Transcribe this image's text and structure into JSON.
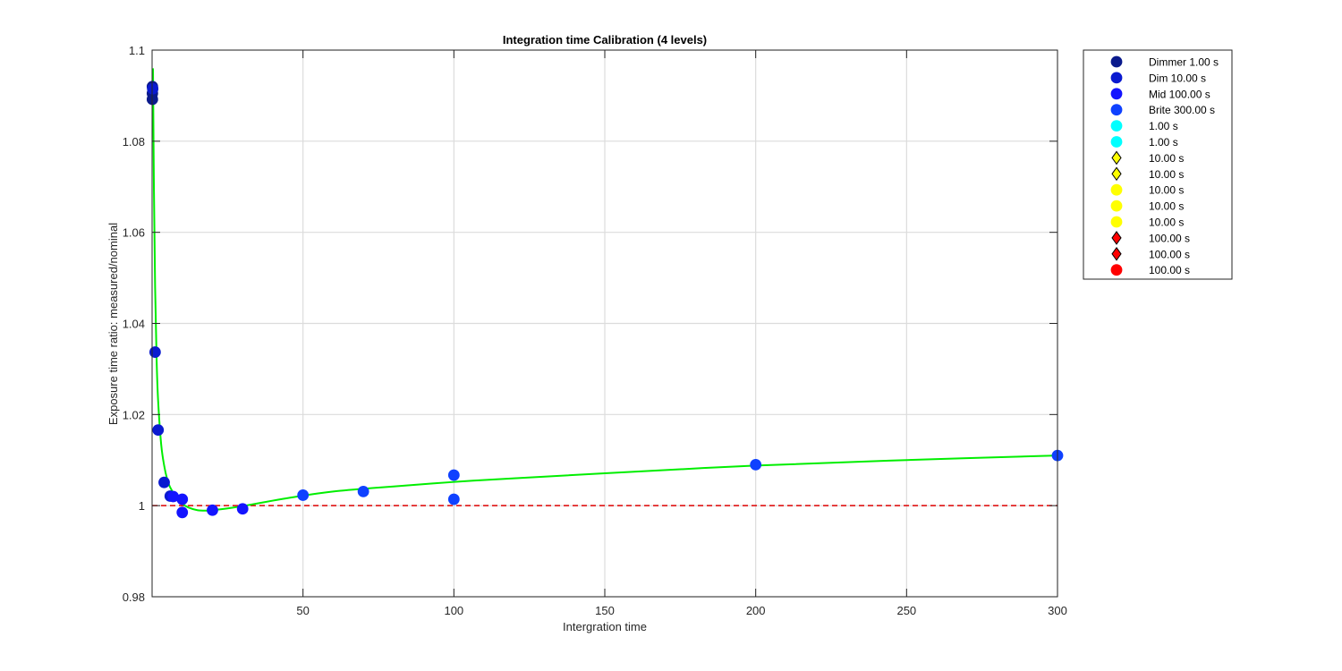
{
  "chart_data": {
    "type": "scatter",
    "title": "Integration time Calibration (4 levels)",
    "xlabel": "Intergration time",
    "ylabel": "Exposure time ratio: measured/nominal",
    "xlim": [
      0,
      300
    ],
    "ylim": [
      0.98,
      1.1
    ],
    "x_ticks": [
      50,
      100,
      150,
      200,
      250,
      300
    ],
    "x_tick_labels": [
      "50",
      "100",
      "150",
      "200",
      "250",
      "300"
    ],
    "y_ticks": [
      0.98,
      1,
      1.02,
      1.04,
      1.06,
      1.08,
      1.1
    ],
    "y_tick_labels": [
      "0.98",
      "1",
      "1.02",
      "1.04",
      "1.06",
      "1.08",
      "1.1"
    ],
    "grid": true,
    "legend_position": "outside-right",
    "series": [
      {
        "name": "Dimmer 1.00 s",
        "marker": "circle",
        "color": "#0a1a8c",
        "x": [
          0.1,
          0.1,
          0.1
        ],
        "y": [
          1.092,
          1.0905,
          1.0892
        ]
      },
      {
        "name": "Dim 10.00 s",
        "marker": "circle",
        "color": "#0a1ad0",
        "x": [
          0.2,
          1,
          2,
          4,
          6
        ],
        "y": [
          1.0915,
          1.0337,
          1.0166,
          1.0051,
          1.0021
        ]
      },
      {
        "name": "Mid 100.00 s",
        "marker": "circle",
        "color": "#1414ff",
        "x": [
          7,
          10,
          10,
          20,
          30
        ],
        "y": [
          1.002,
          1.0014,
          0.9985,
          0.999,
          0.9993
        ]
      },
      {
        "name": "Brite 300.00 s",
        "marker": "circle",
        "color": "#0f41ff",
        "x": [
          50,
          70,
          100,
          100,
          200,
          300
        ],
        "y": [
          1.0023,
          1.0031,
          1.0067,
          1.0014,
          1.009,
          1.011
        ]
      },
      {
        "name": "1.00 s",
        "marker": "circle",
        "color": "#00ffff",
        "x": [],
        "y": []
      },
      {
        "name": "1.00 s",
        "marker": "circle",
        "color": "#00ffff",
        "x": [],
        "y": []
      },
      {
        "name": "10.00 s",
        "marker": "diamond",
        "color": "#ffff00",
        "x": [],
        "y": []
      },
      {
        "name": "10.00 s",
        "marker": "diamond",
        "color": "#ffff00",
        "x": [],
        "y": []
      },
      {
        "name": "10.00 s",
        "marker": "circle",
        "color": "#ffff00",
        "x": [],
        "y": []
      },
      {
        "name": "10.00 s",
        "marker": "circle",
        "color": "#ffff00",
        "x": [],
        "y": []
      },
      {
        "name": "10.00 s",
        "marker": "circle",
        "color": "#ffff00",
        "x": [],
        "y": []
      },
      {
        "name": "100.00 s",
        "marker": "diamond",
        "color": "#ff0000",
        "x": [],
        "y": []
      },
      {
        "name": "100.00 s",
        "marker": "diamond",
        "color": "#ff0000",
        "x": [],
        "y": []
      },
      {
        "name": "100.00 s",
        "marker": "circle",
        "color": "#ff0000",
        "x": [],
        "y": []
      }
    ],
    "fit_curve": {
      "color": "#00ee00",
      "x": [
        0.3,
        0.6,
        1,
        1.5,
        2,
        3,
        4,
        5,
        6,
        8,
        10,
        12,
        15,
        18,
        20,
        25,
        30,
        40,
        50,
        60,
        70,
        80,
        100,
        120,
        150,
        200,
        250,
        300
      ],
      "y": [
        1.096,
        1.07,
        1.048,
        1.032,
        1.023,
        1.0135,
        1.0088,
        1.0058,
        1.004,
        1.0018,
        1.0004,
        0.9996,
        0.999,
        0.9989,
        0.999,
        0.9994,
        0.9999,
        1.0011,
        1.0022,
        1.0031,
        1.0037,
        1.0042,
        1.0052,
        1.006,
        1.0071,
        1.0088,
        1.01,
        1.011
      ]
    },
    "reference_line": {
      "y": 1,
      "style": "dashed",
      "color": "#dd0000"
    }
  }
}
